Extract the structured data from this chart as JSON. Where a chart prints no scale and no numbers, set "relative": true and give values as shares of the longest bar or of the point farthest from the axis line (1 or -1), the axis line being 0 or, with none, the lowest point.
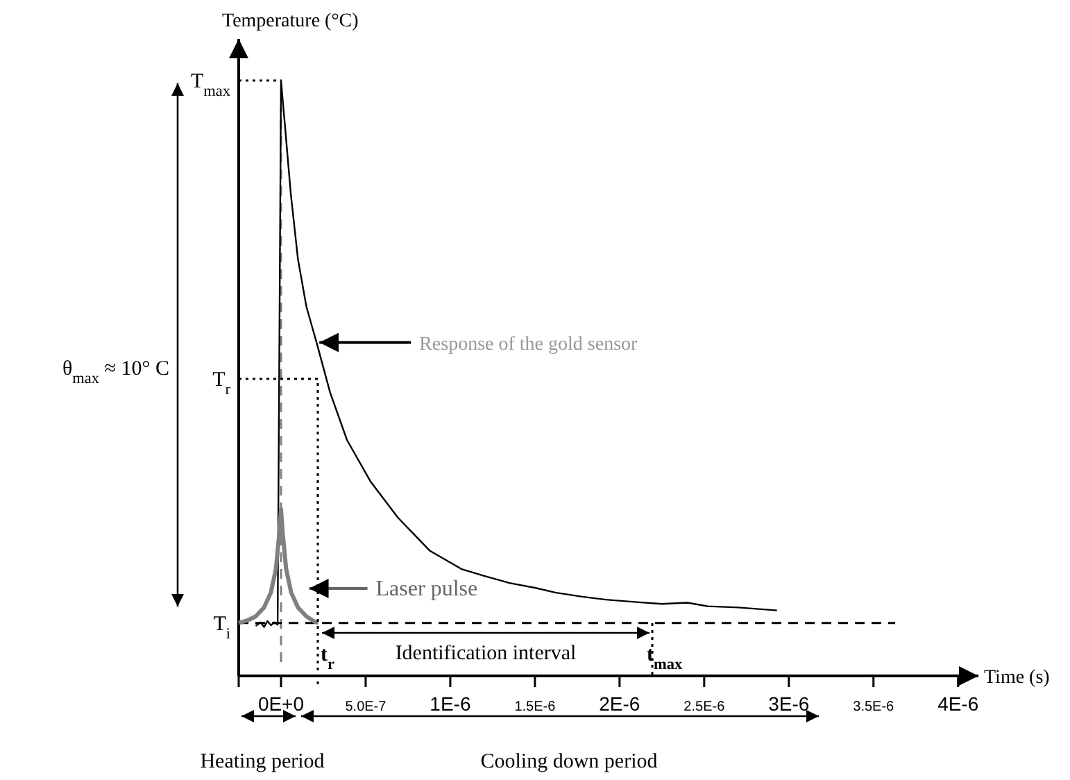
{
  "chart_data": {
    "type": "line",
    "relative": true,
    "xlabel": "Time (s)",
    "ylabel": "Temperature (°C)",
    "marker": "none",
    "xlim": [
      -2.5e-07,
      4.12e-06
    ],
    "xticks": [
      {
        "value": -2.5e-07,
        "label": null
      },
      {
        "value": 0,
        "label": "0E+0"
      },
      {
        "value": 5e-07,
        "label": "5.0E-7"
      },
      {
        "value": 1e-06,
        "label": "1E-6"
      },
      {
        "value": 1.5e-06,
        "label": "1.5E-6"
      },
      {
        "value": 2e-06,
        "label": "2E-6"
      },
      {
        "value": 2.5e-06,
        "label": "2.5E-6"
      },
      {
        "value": 3e-06,
        "label": "3E-6"
      },
      {
        "value": 3.5e-06,
        "label": "3.5E-6"
      },
      {
        "value": 4e-06,
        "label": "4E-6"
      }
    ],
    "series": [
      {
        "name": "Response of the gold sensor",
        "color": "#000000",
        "line_style": "solid",
        "x": [
          -1.5e-07,
          -1.2e-07,
          -1e-07,
          -8e-08,
          -6e-08,
          -4e-08,
          -2e-08,
          0,
          2.3e-08,
          5.8e-08,
          1e-07,
          1.5e-07,
          2.1e-07,
          2.9e-07,
          3.9e-07,
          5.3e-07,
          6.9e-07,
          8.8e-07,
          1.07e-06,
          1.2e-06,
          1.35e-06,
          1.5e-06,
          1.62e-06,
          1.78e-06,
          1.92e-06,
          2.1e-06,
          2.25e-06,
          2.4e-06,
          2.52e-06,
          2.7e-06,
          2.93e-06
        ],
        "values": [
          0.084,
          0.09,
          0.082,
          0.092,
          0.085,
          0.09,
          0.086,
          1,
          0.925,
          0.809,
          0.7,
          0.62,
          0.56,
          0.476,
          0.396,
          0.326,
          0.266,
          0.21,
          0.179,
          0.168,
          0.156,
          0.148,
          0.14,
          0.133,
          0.128,
          0.124,
          0.121,
          0.123,
          0.117,
          0.115,
          0.11
        ]
      },
      {
        "name": "Laser pulse",
        "color": "#808080",
        "line_style": "solid",
        "x": [
          -2.5e-07,
          -2e-07,
          -1.5e-07,
          -1e-07,
          -6e-08,
          -3e-08,
          -1e-08,
          0,
          1e-08,
          3e-08,
          6e-08,
          1e-07,
          1.5e-07,
          2e-07,
          2.2e-07
        ],
        "values": [
          0.089,
          0.093,
          0.1,
          0.115,
          0.14,
          0.18,
          0.24,
          0.28,
          0.24,
          0.18,
          0.14,
          0.115,
          0.1,
          0.091,
          0.089
        ]
      }
    ],
    "ref_lines": [
      {
        "axis": "x",
        "value": 0,
        "color": "#808080",
        "line_style": "dashed"
      },
      {
        "axis": "y",
        "value": 0.089,
        "label": "T$_{i}$",
        "color": "#000000",
        "line_style": "dashed"
      }
    ],
    "annotations": [
      "T$_{max}$",
      "T$_{r}$",
      "t$_{r}$",
      "t$_{max}$",
      "Identification interval",
      "Heating period",
      "Cooling down period",
      "θ$_{max}$ ≈ 10° C"
    ]
  }
}
